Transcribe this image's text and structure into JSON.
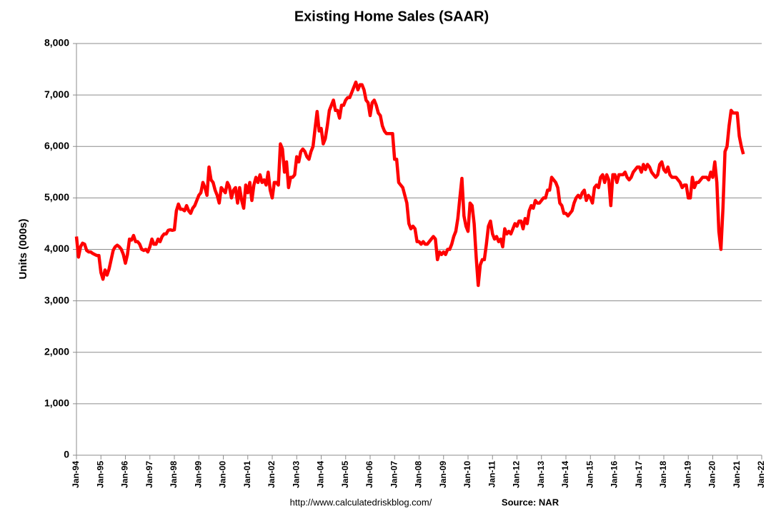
{
  "chart_data": {
    "type": "line",
    "title": "Existing Home Sales (SAAR)",
    "y_label": "Units (000s)",
    "source_url": "http://www.calculatedriskblog.com/",
    "source": "Source: NAR",
    "ylim": [
      0,
      8000
    ],
    "yticks": [
      0,
      {
        "value": 1000,
        "label": "1,000"
      },
      {
        "value": 2000,
        "label": "2,000"
      },
      {
        "value": 3000,
        "label": "3,000"
      },
      {
        "value": 4000,
        "label": "4,000"
      },
      {
        "value": 5000,
        "label": "5,000"
      },
      {
        "value": 6000,
        "label": "6,000"
      },
      {
        "value": 7000,
        "label": "7,000"
      },
      {
        "value": 8000,
        "label": "8,000"
      }
    ],
    "grid": true,
    "categories": [
      "Jan-94",
      null,
      null,
      null,
      null,
      null,
      null,
      null,
      null,
      null,
      null,
      null,
      "Jan-95",
      null,
      null,
      null,
      null,
      null,
      null,
      null,
      null,
      null,
      null,
      null,
      "Jan-96",
      null,
      null,
      null,
      null,
      null,
      null,
      null,
      null,
      null,
      null,
      null,
      "Jan-97",
      null,
      null,
      null,
      null,
      null,
      null,
      null,
      null,
      null,
      null,
      null,
      "Jan-98",
      null,
      null,
      null,
      null,
      null,
      null,
      null,
      null,
      null,
      null,
      null,
      "Jan-99",
      null,
      null,
      null,
      null,
      null,
      null,
      null,
      null,
      null,
      null,
      null,
      "Jan-00",
      null,
      null,
      null,
      null,
      null,
      null,
      null,
      null,
      null,
      null,
      null,
      "Jan-01",
      null,
      null,
      null,
      null,
      null,
      null,
      null,
      null,
      null,
      null,
      null,
      "Jan-02",
      null,
      null,
      null,
      null,
      null,
      null,
      null,
      null,
      null,
      null,
      null,
      "Jan-03",
      null,
      null,
      null,
      null,
      null,
      null,
      null,
      null,
      null,
      null,
      null,
      "Jan-04",
      null,
      null,
      null,
      null,
      null,
      null,
      null,
      null,
      null,
      null,
      null,
      "Jan-05",
      null,
      null,
      null,
      null,
      null,
      null,
      null,
      null,
      null,
      null,
      null,
      "Jan-06",
      null,
      null,
      null,
      null,
      null,
      null,
      null,
      null,
      null,
      null,
      null,
      "Jan-07",
      null,
      null,
      null,
      null,
      null,
      null,
      null,
      null,
      null,
      null,
      null,
      "Jan-08",
      null,
      null,
      null,
      null,
      null,
      null,
      null,
      null,
      null,
      null,
      null,
      "Jan-09",
      null,
      null,
      null,
      null,
      null,
      null,
      null,
      null,
      null,
      null,
      null,
      "Jan-10",
      null,
      null,
      null,
      null,
      null,
      null,
      null,
      null,
      null,
      null,
      null,
      "Jan-11",
      null,
      null,
      null,
      null,
      null,
      null,
      null,
      null,
      null,
      null,
      null,
      "Jan-12",
      null,
      null,
      null,
      null,
      null,
      null,
      null,
      null,
      null,
      null,
      null,
      "Jan-13",
      null,
      null,
      null,
      null,
      null,
      null,
      null,
      null,
      null,
      null,
      null,
      "Jan-14",
      null,
      null,
      null,
      null,
      null,
      null,
      null,
      null,
      null,
      null,
      null,
      "Jan-15",
      null,
      null,
      null,
      null,
      null,
      null,
      null,
      null,
      null,
      null,
      null,
      "Jan-16",
      null,
      null,
      null,
      null,
      null,
      null,
      null,
      null,
      null,
      null,
      null,
      "Jan-17",
      null,
      null,
      null,
      null,
      null,
      null,
      null,
      null,
      null,
      null,
      null,
      "Jan-18",
      null,
      null,
      null,
      null,
      null,
      null,
      null,
      null,
      null,
      null,
      null,
      "Jan-19",
      null,
      null,
      null,
      null,
      null,
      null,
      null,
      null,
      null,
      null,
      null,
      "Jan-20",
      null,
      null,
      null,
      null,
      null,
      null,
      null,
      null,
      null,
      null,
      null,
      "Jan-21",
      null,
      null,
      null,
      null,
      null,
      null,
      null,
      null,
      null,
      null,
      null,
      "Jan-22"
    ],
    "series": [
      {
        "name": "Existing Home Sales",
        "color": "#ff0000",
        "values": [
          4250,
          3850,
          4050,
          4120,
          4100,
          3980,
          3950,
          3950,
          3920,
          3900,
          3880,
          3880,
          3550,
          3420,
          3600,
          3500,
          3620,
          3800,
          3980,
          4050,
          4080,
          4050,
          4000,
          3900,
          3730,
          3900,
          4200,
          4180,
          4270,
          4150,
          4150,
          4100,
          4000,
          3980,
          4000,
          3950,
          4050,
          4200,
          4100,
          4100,
          4200,
          4150,
          4250,
          4300,
          4300,
          4370,
          4380,
          4370,
          4380,
          4750,
          4880,
          4780,
          4780,
          4750,
          4850,
          4750,
          4700,
          4800,
          4850,
          4950,
          5050,
          5100,
          5300,
          5200,
          5050,
          5600,
          5350,
          5300,
          5150,
          5050,
          4900,
          5200,
          5150,
          5100,
          5300,
          5220,
          5000,
          5150,
          5200,
          4900,
          5200,
          4950,
          4800,
          5250,
          5100,
          5300,
          4950,
          5250,
          5400,
          5300,
          5450,
          5300,
          5350,
          5250,
          5500,
          5150,
          5000,
          5300,
          5300,
          5250,
          6050,
          5950,
          5500,
          5700,
          5200,
          5400,
          5400,
          5450,
          5800,
          5700,
          5900,
          5950,
          5900,
          5800,
          5750,
          5900,
          6000,
          6350,
          6680,
          6300,
          6350,
          6050,
          6150,
          6400,
          6700,
          6800,
          6900,
          6700,
          6700,
          6550,
          6800,
          6800,
          6900,
          6950,
          6950,
          7050,
          7150,
          7250,
          7100,
          7200,
          7200,
          7100,
          6900,
          6850,
          6600,
          6850,
          6900,
          6800,
          6650,
          6600,
          6400,
          6300,
          6250,
          6250,
          6250,
          6250,
          5750,
          5750,
          5300,
          5250,
          5200,
          5050,
          4900,
          4500,
          4400,
          4450,
          4400,
          4150,
          4150,
          4100,
          4150,
          4100,
          4100,
          4150,
          4200,
          4250,
          4200,
          3800,
          3950,
          3900,
          3950,
          3900,
          4000,
          4000,
          4100,
          4250,
          4350,
          4600,
          5000,
          5380,
          4650,
          4450,
          4350,
          4900,
          4850,
          4500,
          3850,
          3300,
          3700,
          3800,
          3800,
          4100,
          4450,
          4550,
          4300,
          4200,
          4250,
          4150,
          4200,
          4050,
          4400,
          4300,
          4350,
          4300,
          4400,
          4500,
          4450,
          4550,
          4550,
          4400,
          4600,
          4500,
          4750,
          4850,
          4800,
          4950,
          4900,
          4900,
          4950,
          5000,
          5000,
          5150,
          5150,
          5400,
          5350,
          5300,
          5200,
          4900,
          4850,
          4700,
          4700,
          4650,
          4700,
          4750,
          4900,
          5000,
          5050,
          5000,
          5100,
          5150,
          4950,
          5050,
          5000,
          4900,
          5200,
          5250,
          5200,
          5400,
          5450,
          5300,
          5450,
          5350,
          4850,
          5450,
          5450,
          5300,
          5450,
          5450,
          5450,
          5500,
          5400,
          5350,
          5400,
          5500,
          5550,
          5600,
          5600,
          5500,
          5650,
          5550,
          5650,
          5600,
          5500,
          5450,
          5400,
          5450,
          5650,
          5700,
          5550,
          5500,
          5600,
          5450,
          5400,
          5400,
          5400,
          5350,
          5300,
          5200,
          5250,
          5250,
          5000,
          5000,
          5400,
          5200,
          5300,
          5300,
          5350,
          5400,
          5400,
          5400,
          5350,
          5500,
          5400,
          5700,
          5300,
          4350,
          4000,
          4800,
          5900,
          6000,
          6400,
          6700,
          6650,
          6650,
          6650,
          6200,
          6000,
          5850,
          null,
          null,
          null,
          null,
          null,
          null,
          null,
          null,
          null
        ]
      }
    ]
  }
}
